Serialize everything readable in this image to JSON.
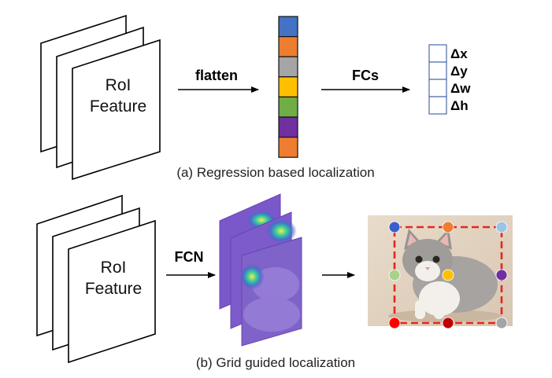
{
  "top": {
    "roi_line1": "RoI",
    "roi_line2": "Feature",
    "flatten_label": "flatten",
    "fcs_label": "FCs",
    "vector_colors": [
      "#4472c4",
      "#ed7d31",
      "#a5a5a5",
      "#ffc000",
      "#70ad47",
      "#7030a0",
      "#ed7d31"
    ],
    "outputs": [
      "Δx",
      "Δy",
      "Δw",
      "Δh"
    ],
    "caption": "(a) Regression based localization"
  },
  "bottom": {
    "roi_line1": "RoI",
    "roi_line2": "Feature",
    "fcn_label": "FCN",
    "caption": "(b) Grid guided localization",
    "grid_point_colors": [
      "#3a5fcd",
      "#ed7d31",
      "#9dc3e6",
      "#a9d18e",
      "#ffc000",
      "#7030a0",
      "#ff0000",
      "#c00000",
      "#a5a5a5"
    ]
  }
}
